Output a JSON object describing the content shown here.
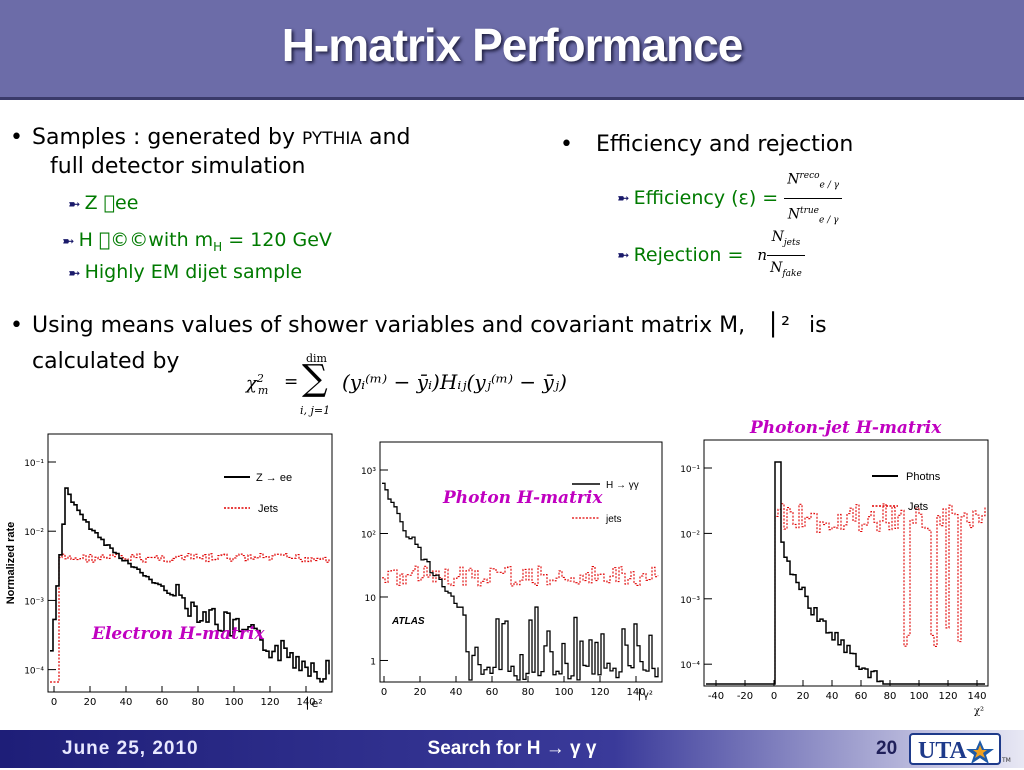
{
  "title": "H-matrix Performance",
  "left": {
    "bullet_prefix": "Samples : generated by ",
    "bullet_small": "PYTHIA",
    "bullet_suffix": " and",
    "bullet_line2": "full detector simulation",
    "subs": [
      "Z \u0000ee",
      "H \u0000©©with m",
      "H",
      " = 120 GeV",
      "Highly EM dijet sample"
    ]
  },
  "right": {
    "bullet": "Efficiency and rejection",
    "eff_label": "Efficiency (ε) =",
    "rej_label": "Rejection =",
    "eff_num": "N",
    "eff_num_sup": "reco",
    "eff_num_sub": "e / γ",
    "eff_den": "N",
    "eff_den_sup": "true",
    "eff_den_sub": "e / γ",
    "rej_n": "n",
    "rej_num": "N",
    "rej_num_sub": "jets",
    "rej_den": "N",
    "rej_den_sub": "fake"
  },
  "means": {
    "line1": "Using means values of shower variables and covariant matrix M,",
    "symbol": "⎢²",
    "is": "is",
    "line2": "calculated by"
  },
  "formula": {
    "lhs": "χ",
    "lhs_sup": "2",
    "lhs_sub": "m",
    "eq": "=",
    "sum_top": "dim",
    "sum_bottom": "i, j=1",
    "body": "(yᵢ⁽ᵐ⁾ − ȳᵢ)Hᵢⱼ(yⱼ⁽ᵐ⁾ − ȳⱼ)"
  },
  "plots": {
    "p1": {
      "ylabel": "Normalized rate",
      "yticks": [
        "10⁻¹",
        "10⁻²",
        "10⁻³",
        "10⁻⁴"
      ],
      "xticks": [
        "0",
        "20",
        "40",
        "60",
        "80",
        "100",
        "120",
        "140"
      ],
      "legend": [
        "Z → ee",
        "Jets"
      ],
      "label": "Electron H-matrix",
      "axis_symbol": "⎢e²"
    },
    "p2": {
      "yticks": [
        "10³",
        "10²",
        "10",
        "1"
      ],
      "xticks": [
        "0",
        "20",
        "40",
        "60",
        "80",
        "100",
        "120",
        "140"
      ],
      "legend": [
        "H → γγ",
        "jets"
      ],
      "label": "Photon H-matrix",
      "atlas": "ATLAS",
      "axis_symbol": "⎢γ²"
    },
    "p3": {
      "yticks": [
        "10⁻¹",
        "10⁻²",
        "10⁻³",
        "10⁻⁴"
      ],
      "xticks": [
        "-40",
        "-20",
        "0",
        "20",
        "40",
        "60",
        "80",
        "100",
        "120",
        "140"
      ],
      "legend": [
        "Photns",
        "Jets"
      ],
      "label": "Photon-jet H-matrix",
      "axis_symbol": "χ²"
    }
  },
  "footer": {
    "date": "June 25, 2010",
    "center": "Search for H → γ γ",
    "page": "20",
    "logo": "UTA"
  },
  "colors": {
    "title_bg": "#6c6ca8",
    "sub_text": "#007a00",
    "label": "#c000c0",
    "signal": "#000000",
    "background": "#e00000"
  }
}
